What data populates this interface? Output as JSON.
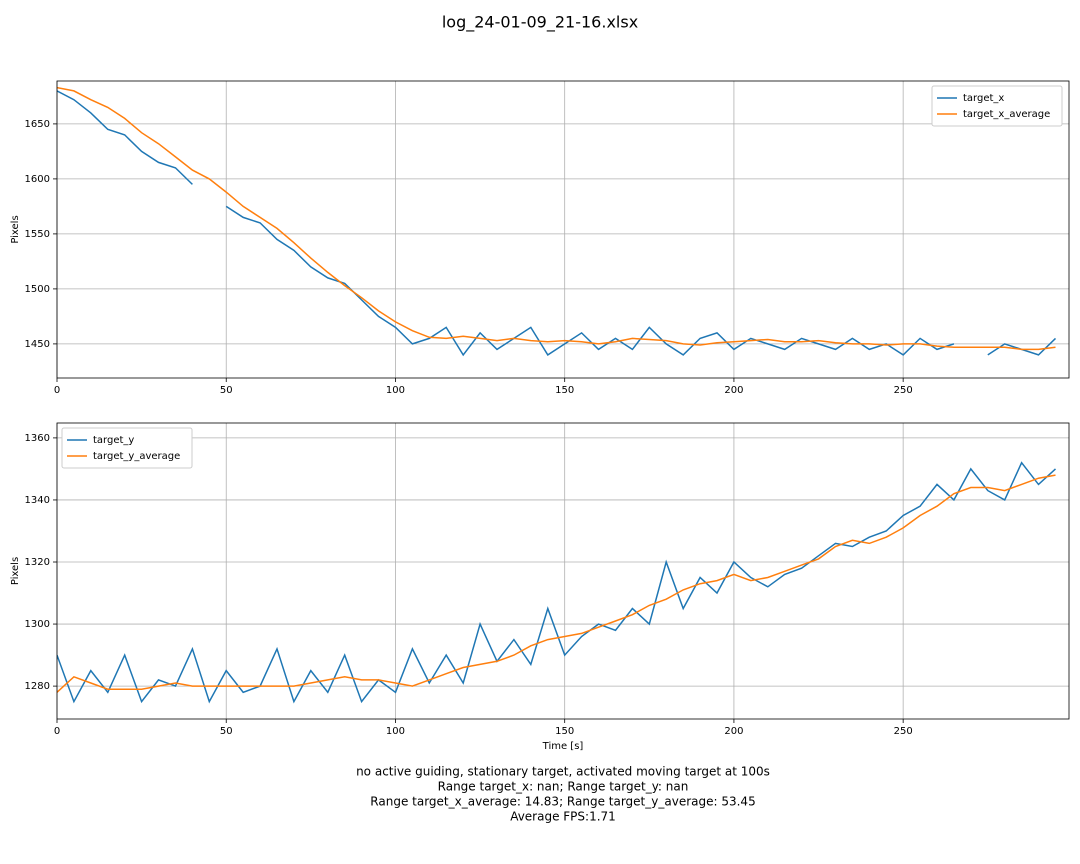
{
  "title": "log_24-01-09_21-16.xlsx",
  "caption": [
    "no active guiding, stationary target, activated moving target at 100s",
    "Range target_x: nan; Range target_y: nan",
    "Range target_x_average: 14.83; Range target_y_average: 53.45",
    "Average FPS:1.71"
  ],
  "chart_data": [
    {
      "type": "line",
      "ylabel": "Pixels",
      "legend": "upper right",
      "grid": true,
      "xlim": [
        0,
        299
      ],
      "ylim": [
        1419,
        1689
      ],
      "xticks": [
        0,
        50,
        100,
        150,
        200,
        250
      ],
      "yticks": [
        1450,
        1500,
        1550,
        1600,
        1650
      ],
      "x": [
        0,
        5,
        10,
        15,
        20,
        25,
        30,
        35,
        40,
        45,
        50,
        55,
        60,
        65,
        70,
        75,
        80,
        85,
        90,
        95,
        100,
        105,
        110,
        115,
        120,
        125,
        130,
        135,
        140,
        145,
        150,
        155,
        160,
        165,
        170,
        175,
        180,
        185,
        190,
        195,
        200,
        205,
        210,
        215,
        220,
        225,
        230,
        235,
        240,
        245,
        250,
        255,
        260,
        265,
        270,
        275,
        280,
        285,
        290,
        295
      ],
      "series": [
        {
          "name": "target_x",
          "color": "#1f77b4",
          "values": [
            1680,
            1672,
            1660,
            1645,
            1640,
            1625,
            1615,
            1610,
            1595,
            null,
            1575,
            1565,
            1560,
            1545,
            1535,
            1520,
            1510,
            1505,
            1490,
            1475,
            1465,
            1450,
            1455,
            1465,
            1440,
            1460,
            1445,
            1455,
            1465,
            1440,
            1450,
            1460,
            1445,
            1455,
            1445,
            1465,
            1450,
            1440,
            1455,
            1460,
            1445,
            1455,
            1450,
            1445,
            1455,
            1450,
            1445,
            1455,
            1445,
            1450,
            1440,
            1455,
            1445,
            1450,
            null,
            1440,
            1450,
            1445,
            1440,
            1455
          ]
        },
        {
          "name": "target_x_average",
          "color": "#ff7f0e",
          "values": [
            1683,
            1680,
            1672,
            1665,
            1655,
            1642,
            1632,
            1620,
            1608,
            1600,
            1588,
            1575,
            1565,
            1555,
            1542,
            1528,
            1515,
            1503,
            1492,
            1480,
            1470,
            1462,
            1456,
            1455,
            1457,
            1455,
            1453,
            1455,
            1453,
            1452,
            1453,
            1452,
            1450,
            1452,
            1455,
            1454,
            1453,
            1450,
            1449,
            1451,
            1452,
            1453,
            1454,
            1452,
            1452,
            1453,
            1451,
            1450,
            1450,
            1449,
            1450,
            1450,
            1448,
            1447,
            1447,
            1447,
            1447,
            1445,
            1445,
            1447
          ]
        }
      ]
    },
    {
      "type": "line",
      "ylabel": "Pixels",
      "xlabel": "Time [s]",
      "legend": "upper left",
      "grid": true,
      "xlim": [
        0,
        299
      ],
      "ylim": [
        1269.4,
        1364.8
      ],
      "xticks": [
        0,
        50,
        100,
        150,
        200,
        250
      ],
      "yticks": [
        1280,
        1300,
        1320,
        1340,
        1360
      ],
      "x": [
        0,
        5,
        10,
        15,
        20,
        25,
        30,
        35,
        40,
        45,
        50,
        55,
        60,
        65,
        70,
        75,
        80,
        85,
        90,
        95,
        100,
        105,
        110,
        115,
        120,
        125,
        130,
        135,
        140,
        145,
        150,
        155,
        160,
        165,
        170,
        175,
        180,
        185,
        190,
        195,
        200,
        205,
        210,
        215,
        220,
        225,
        230,
        235,
        240,
        245,
        250,
        255,
        260,
        265,
        270,
        275,
        280,
        285,
        290,
        295
      ],
      "series": [
        {
          "name": "target_y",
          "color": "#1f77b4",
          "values": [
            1290,
            1275,
            1285,
            1278,
            1290,
            1275,
            1282,
            1280,
            1292,
            1275,
            1285,
            1278,
            1280,
            1292,
            1275,
            1285,
            1278,
            1290,
            1275,
            1282,
            1278,
            1292,
            1281,
            1290,
            1281,
            1300,
            1288,
            1295,
            1287,
            1305,
            1290,
            1296,
            1300,
            1298,
            1305,
            1300,
            1320,
            1305,
            1315,
            1310,
            1320,
            1315,
            1312,
            1316,
            1318,
            1322,
            1326,
            1325,
            1328,
            1330,
            1335,
            1338,
            1345,
            1340,
            1350,
            1343,
            1340,
            1352,
            1345,
            1350
          ]
        },
        {
          "name": "target_y_average",
          "color": "#ff7f0e",
          "values": [
            1278,
            1283,
            1281,
            1279,
            1279,
            1279,
            1280,
            1281,
            1280,
            1280,
            1280,
            1280,
            1280,
            1280,
            1280,
            1281,
            1282,
            1283,
            1282,
            1282,
            1281,
            1280,
            1282,
            1284,
            1286,
            1287,
            1288,
            1290,
            1293,
            1295,
            1296,
            1297,
            1299,
            1301,
            1303,
            1306,
            1308,
            1311,
            1313,
            1314,
            1316,
            1314,
            1315,
            1317,
            1319,
            1321,
            1325,
            1327,
            1326,
            1328,
            1331,
            1335,
            1338,
            1342,
            1344,
            1344,
            1343,
            1345,
            1347,
            1348
          ]
        }
      ]
    }
  ]
}
